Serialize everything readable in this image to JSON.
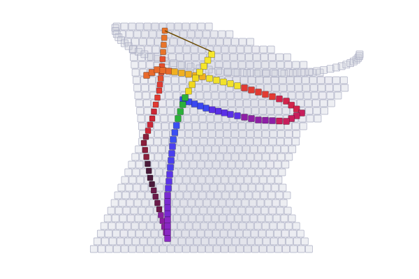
{
  "scene": {
    "background_color": "#ffffff",
    "surface": {
      "shape": "hyperboloid-voxel-mesh",
      "voxel_color": "#c8cad8",
      "voxel_edge_color": "#a9acc2",
      "opacity": 0.55
    },
    "paths": [
      {
        "name": "vertical-red-path",
        "colors": [
          "#e8742a",
          "#e5502f",
          "#e03a32",
          "#cc2636",
          "#8a1f3c",
          "#4a1a3a",
          "#6b1a4a",
          "#8a1fa0"
        ]
      },
      {
        "name": "vertical-blue-path",
        "colors": [
          "#f6e62a",
          "#f0d81e",
          "#2bb13a",
          "#3a4ff2",
          "#4a3fee",
          "#5a33e8",
          "#7a2ad0",
          "#8a28c4"
        ]
      },
      {
        "name": "horizontal-ring-path",
        "colors": [
          "#e86a2c",
          "#f0b020",
          "#f2e22a",
          "#e23b33",
          "#d2244a",
          "#c81e5c",
          "#8e1fa6",
          "#5a30e6",
          "#3a48f0"
        ]
      }
    ]
  }
}
